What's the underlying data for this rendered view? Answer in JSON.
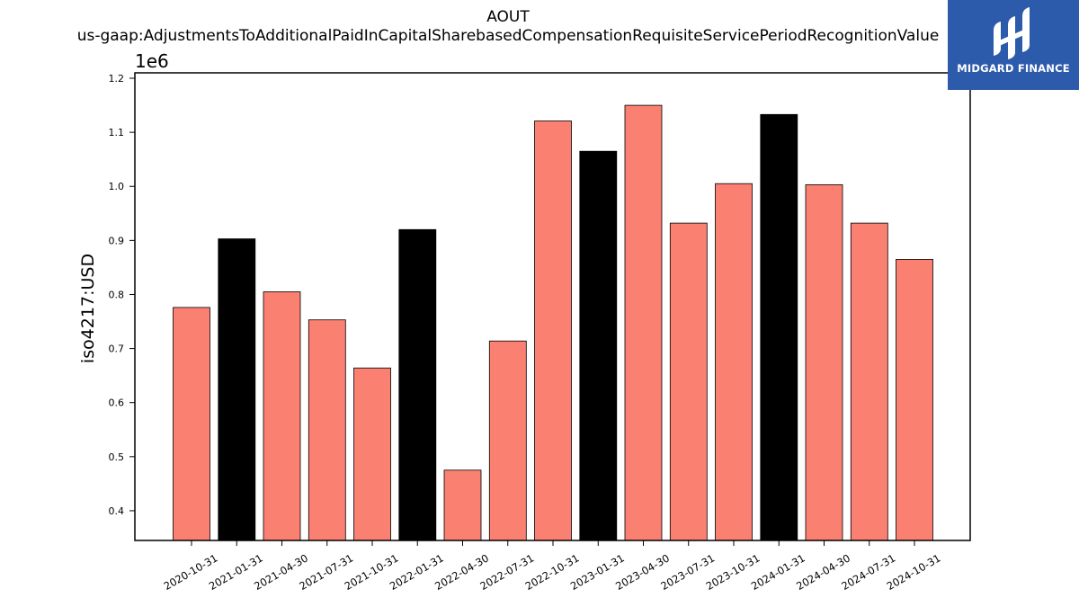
{
  "chart_data": {
    "type": "bar",
    "title": "AOUT",
    "subtitle": "us-gaap:AdjustmentsToAdditionalPaidInCapitalSharebasedCompensationRequisiteServicePeriodRecognitionValue",
    "ylabel": "iso4217:USD",
    "xlabel": "",
    "y_multiplier_label": "1e6",
    "ylim": [
      0.345,
      1.21
    ],
    "yticks": [
      "0.4",
      "0.5",
      "0.6",
      "0.7",
      "0.8",
      "0.9",
      "1.0",
      "1.1",
      "1.2"
    ],
    "grid": false,
    "categories": [
      "2020-10-31",
      "2021-01-31",
      "2021-04-30",
      "2021-07-31",
      "2021-10-31",
      "2022-01-31",
      "2022-04-30",
      "2022-07-31",
      "2022-10-31",
      "2023-01-31",
      "2023-04-30",
      "2023-07-31",
      "2023-10-31",
      "2024-01-31",
      "2024-04-30",
      "2024-07-31",
      "2024-10-31"
    ],
    "values": [
      0.776,
      0.903,
      0.805,
      0.753,
      0.664,
      0.92,
      0.475,
      0.714,
      1.121,
      1.065,
      1.15,
      0.932,
      1.005,
      1.133,
      1.003,
      0.932,
      0.865
    ],
    "highlight_color": "#000000",
    "base_color": "#fa8072",
    "bar_colors": [
      "salmon",
      "black",
      "salmon",
      "salmon",
      "salmon",
      "black",
      "salmon",
      "salmon",
      "salmon",
      "black",
      "salmon",
      "salmon",
      "salmon",
      "black",
      "salmon",
      "salmon",
      "salmon"
    ]
  },
  "logo": {
    "text": "MIDGARD FINANCE",
    "icon": "midgard-logo-icon",
    "background": "#2d5bab"
  }
}
